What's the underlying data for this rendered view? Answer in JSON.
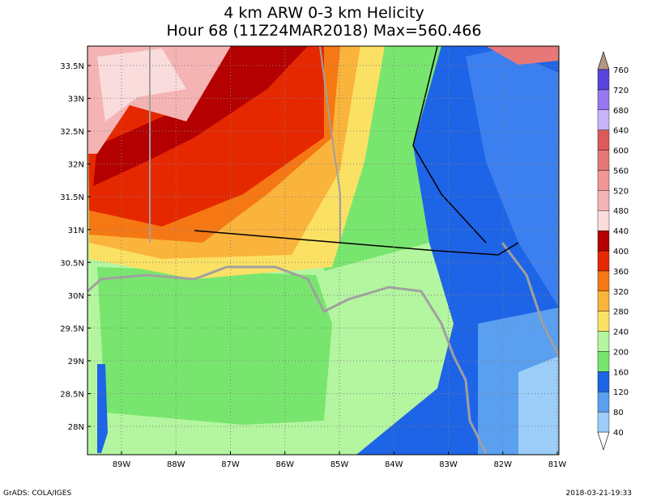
{
  "title": [
    "4 km ARW 0-3 km Helicity",
    "Hour 68 (11Z24MAR2018) Max=560.466"
  ],
  "lat_labels": [
    "33.5N",
    "33N",
    "32.5N",
    "32N",
    "31.5N",
    "31N",
    "30.5N",
    "30N",
    "29.5N",
    "29N",
    "28.5N",
    "28N"
  ],
  "lon_labels": [
    "89W",
    "88W",
    "87W",
    "86W",
    "85W",
    "84W",
    "83W",
    "82W",
    "81W"
  ],
  "colorbar": {
    "levels": [
      40,
      80,
      120,
      160,
      200,
      240,
      280,
      320,
      360,
      400,
      440,
      480,
      520,
      560,
      600,
      640,
      680,
      720,
      760
    ],
    "colors": [
      "#9ccdf9",
      "#5a9ff0",
      "#1e64e6",
      "#78e66e",
      "#b4f5a0",
      "#fae164",
      "#fab43c",
      "#f57814",
      "#e62800",
      "#b40000",
      "#fadcdc",
      "#f5b4b4",
      "#f09696",
      "#e67878",
      "#dc5a5a",
      "#c8b4fa",
      "#9678f0",
      "#5a46dc"
    ],
    "under_color": "#ffffff",
    "over_color": "#b49682"
  },
  "footer_left": "GrADS: COLA/IGES",
  "footer_right": "2018-03-21-19:33"
}
